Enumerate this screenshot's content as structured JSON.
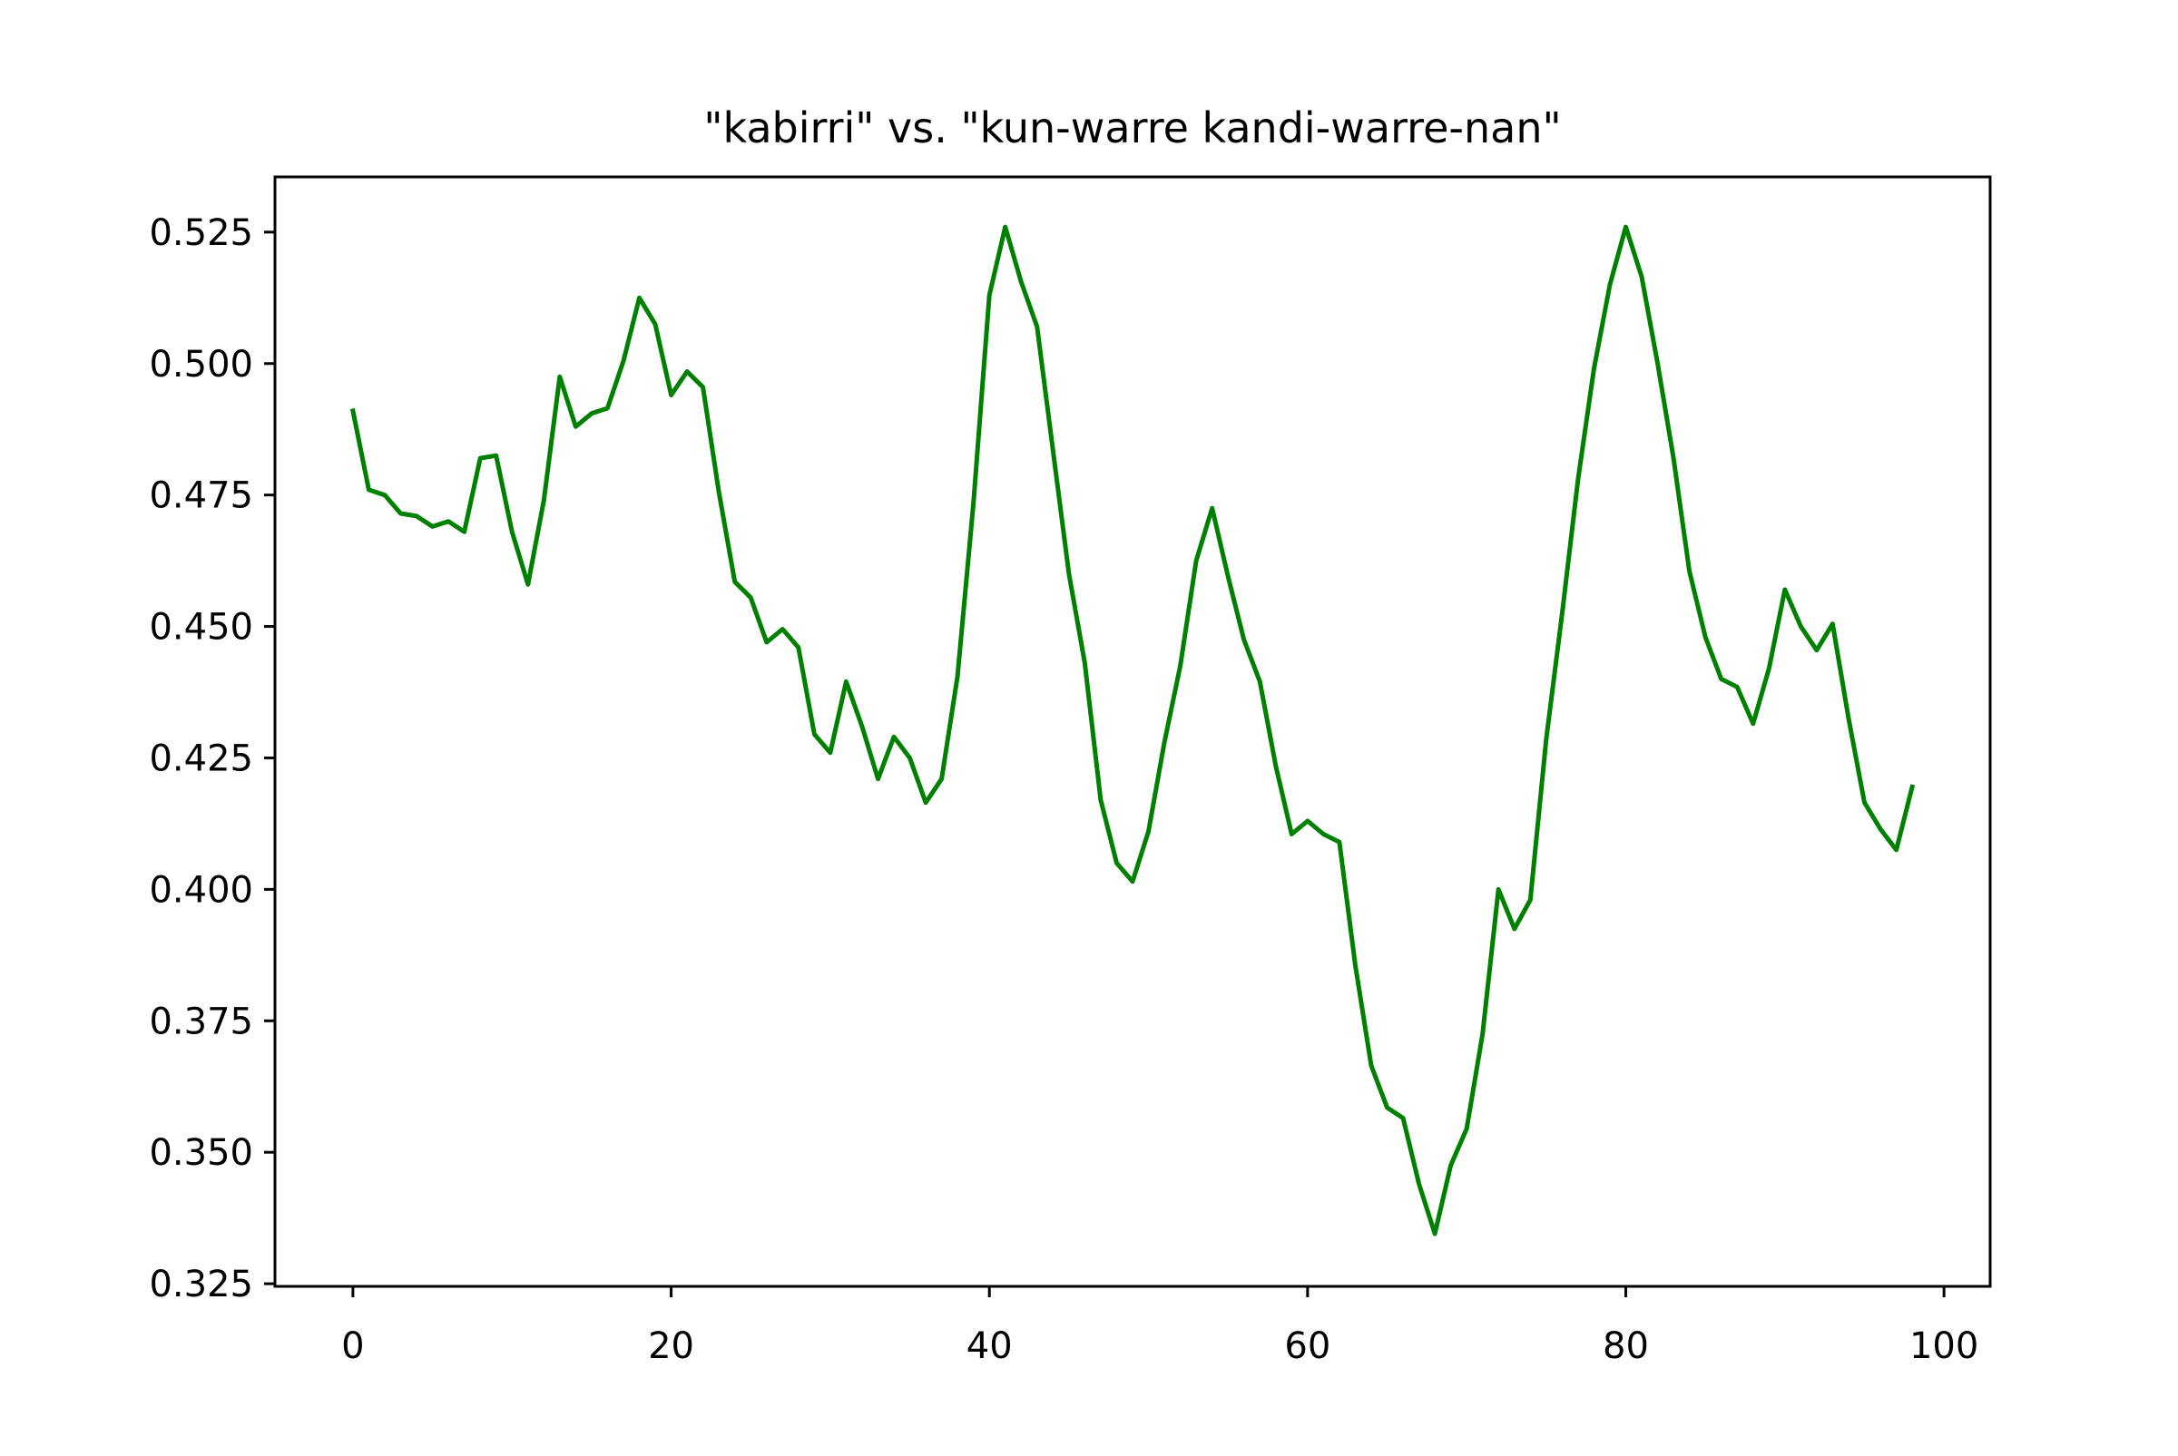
{
  "chart_data": {
    "type": "line",
    "title": "\"kabirri\" vs. \"kun-warre kandi-warre-nan\"",
    "xlabel": "",
    "ylabel": "",
    "xlim": [
      -4.9,
      102.9
    ],
    "ylim": [
      0.3245,
      0.5355
    ],
    "grid": false,
    "legend": "none",
    "x_ticks": [
      0,
      20,
      40,
      60,
      80,
      100
    ],
    "x_tick_labels": [
      "0",
      "20",
      "40",
      "60",
      "80",
      "100"
    ],
    "y_ticks": [
      0.325,
      0.35,
      0.375,
      0.4,
      0.425,
      0.45,
      0.475,
      0.5,
      0.525
    ],
    "y_tick_labels": [
      "0.325",
      "0.350",
      "0.375",
      "0.400",
      "0.425",
      "0.450",
      "0.475",
      "0.500",
      "0.525"
    ],
    "series": [
      {
        "color": "#008000",
        "x": [
          0,
          1,
          2,
          3,
          4,
          5,
          6,
          7,
          8,
          9,
          10,
          11,
          12,
          13,
          14,
          15,
          16,
          17,
          18,
          19,
          20,
          21,
          22,
          23,
          24,
          25,
          26,
          27,
          28,
          29,
          30,
          31,
          32,
          33,
          34,
          35,
          36,
          37,
          38,
          39,
          40,
          41,
          42,
          43,
          44,
          45,
          46,
          47,
          48,
          49,
          50,
          51,
          52,
          53,
          54,
          55,
          56,
          57,
          58,
          59,
          60,
          61,
          62,
          63,
          64,
          65,
          66,
          67,
          68,
          69,
          70,
          71,
          72,
          73,
          74,
          75,
          76,
          77,
          78,
          79,
          80,
          81,
          82,
          83,
          84,
          85,
          86,
          87,
          88,
          89,
          90,
          91,
          92,
          93,
          94,
          95,
          96,
          97,
          98
        ],
        "values": [
          0.491,
          0.476,
          0.475,
          0.4715,
          0.471,
          0.469,
          0.47,
          0.468,
          0.482,
          0.4825,
          0.468,
          0.458,
          0.474,
          0.4975,
          0.488,
          0.4905,
          0.4915,
          0.5005,
          0.5125,
          0.5075,
          0.494,
          0.4985,
          0.4955,
          0.4755,
          0.4585,
          0.4555,
          0.447,
          0.4495,
          0.446,
          0.4295,
          0.426,
          0.4395,
          0.431,
          0.421,
          0.429,
          0.425,
          0.4165,
          0.421,
          0.4405,
          0.4735,
          0.513,
          0.526,
          0.5155,
          0.507,
          0.4835,
          0.46,
          0.443,
          0.417,
          0.405,
          0.4015,
          0.411,
          0.428,
          0.4425,
          0.4625,
          0.4725,
          0.4595,
          0.4475,
          0.4395,
          0.4235,
          0.4105,
          0.413,
          0.4105,
          0.409,
          0.3855,
          0.3665,
          0.3585,
          0.3565,
          0.344,
          0.3345,
          0.3475,
          0.3545,
          0.3725,
          0.4,
          0.3925,
          0.398,
          0.4285,
          0.4525,
          0.478,
          0.499,
          0.515,
          0.526,
          0.5165,
          0.5,
          0.482,
          0.4605,
          0.448,
          0.44,
          0.4385,
          0.4315,
          0.442,
          0.457,
          0.45,
          0.4455,
          0.4505,
          0.4325,
          0.4165,
          0.4115,
          0.4075,
          0.4195
        ]
      }
    ]
  }
}
